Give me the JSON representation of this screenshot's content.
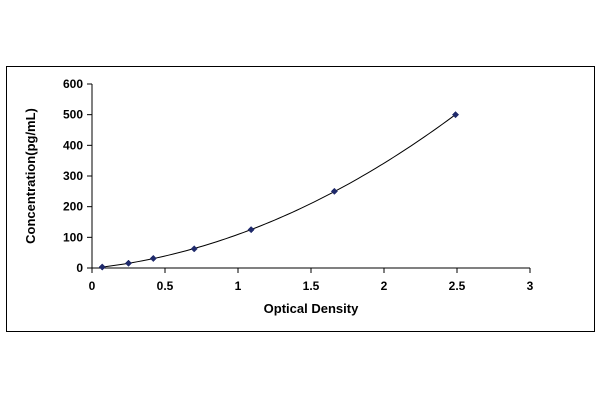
{
  "chart_data": {
    "type": "scatter",
    "title": "",
    "xlabel": "Optical Density",
    "ylabel": "Concentration(pg/mL)",
    "xlim": [
      0,
      3
    ],
    "ylim": [
      0,
      600
    ],
    "x_ticks": [
      0,
      0.5,
      1,
      1.5,
      2,
      2.5,
      3
    ],
    "x_tick_labels": [
      "0",
      "0.5",
      "1",
      "1.5",
      "2",
      "2.5",
      "3"
    ],
    "y_ticks": [
      0,
      100,
      200,
      300,
      400,
      500,
      600
    ],
    "y_tick_labels": [
      "0",
      "100",
      "200",
      "300",
      "400",
      "500",
      "600"
    ],
    "grid": false,
    "legend": "none",
    "series": [
      {
        "marker": "diamond",
        "marker_color": "#1f2a6b",
        "line": "smooth fitted curve",
        "line_color": "#000000",
        "points": [
          {
            "x": 0.07,
            "y": 3.12
          },
          {
            "x": 0.25,
            "y": 15.6
          },
          {
            "x": 0.42,
            "y": 31.2
          },
          {
            "x": 0.7,
            "y": 62.5
          },
          {
            "x": 1.09,
            "y": 125
          },
          {
            "x": 1.66,
            "y": 250
          },
          {
            "x": 2.49,
            "y": 500
          }
        ]
      }
    ]
  }
}
